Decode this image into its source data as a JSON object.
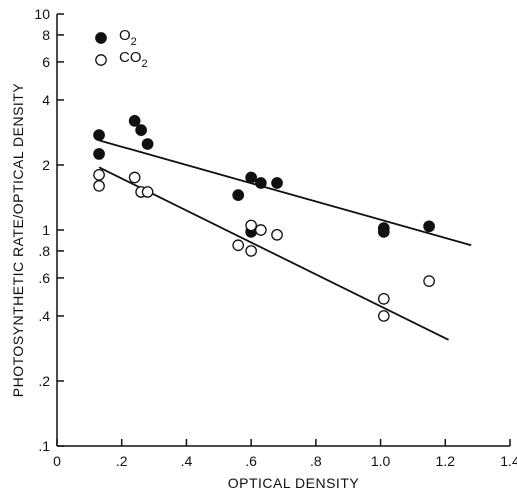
{
  "chart_data": {
    "type": "scatter",
    "title": "",
    "xlabel": "OPTICAL DENSITY",
    "ylabel": "PHOTOSYNTHETIC RATE/OPTICAL DENSITY",
    "xlim": [
      0,
      1.4
    ],
    "ylim": [
      0.1,
      10
    ],
    "yscale": "log",
    "grid": false,
    "legend_position": "top-left",
    "x_ticks": [
      {
        "value": 0,
        "label": "0"
      },
      {
        "value": 0.2,
        "label": ".2"
      },
      {
        "value": 0.4,
        "label": ".4"
      },
      {
        "value": 0.6,
        "label": ".6"
      },
      {
        "value": 0.8,
        "label": ".8"
      },
      {
        "value": 1.0,
        "label": "1.0"
      },
      {
        "value": 1.2,
        "label": "1.2"
      },
      {
        "value": 1.4,
        "label": "1.4"
      }
    ],
    "y_ticks": [
      {
        "value": 0.1,
        "label": ".1"
      },
      {
        "value": 0.2,
        "label": ".2"
      },
      {
        "value": 0.4,
        "label": ".4"
      },
      {
        "value": 0.6,
        "label": ".6"
      },
      {
        "value": 0.8,
        "label": ".8"
      },
      {
        "value": 1,
        "label": "1"
      },
      {
        "value": 2,
        "label": "2"
      },
      {
        "value": 4,
        "label": "4"
      },
      {
        "value": 6,
        "label": "6"
      },
      {
        "value": 8,
        "label": "8"
      },
      {
        "value": 10,
        "label": "10"
      }
    ],
    "series": [
      {
        "name": "O2",
        "marker": "filled-circle",
        "color": "#111111",
        "points": [
          [
            0.13,
            2.75
          ],
          [
            0.13,
            2.25
          ],
          [
            0.24,
            3.2
          ],
          [
            0.26,
            2.9
          ],
          [
            0.28,
            2.5
          ],
          [
            0.56,
            1.45
          ],
          [
            0.6,
            1.75
          ],
          [
            0.6,
            0.98
          ],
          [
            0.63,
            1.65
          ],
          [
            0.68,
            1.65
          ],
          [
            1.01,
            1.02
          ],
          [
            1.01,
            0.98
          ],
          [
            1.15,
            1.04
          ]
        ],
        "trendline": [
          [
            0.13,
            2.6
          ],
          [
            1.28,
            0.85
          ]
        ]
      },
      {
        "name": "CO2",
        "marker": "open-circle",
        "color": "#111111",
        "points": [
          [
            0.13,
            1.8
          ],
          [
            0.13,
            1.6
          ],
          [
            0.24,
            1.75
          ],
          [
            0.26,
            1.5
          ],
          [
            0.28,
            1.5
          ],
          [
            0.56,
            0.85
          ],
          [
            0.6,
            1.05
          ],
          [
            0.6,
            0.8
          ],
          [
            0.63,
            1.0
          ],
          [
            0.68,
            0.95
          ],
          [
            1.01,
            0.48
          ],
          [
            1.01,
            0.4
          ],
          [
            1.15,
            0.58
          ]
        ],
        "trendline": [
          [
            0.13,
            1.95
          ],
          [
            1.21,
            0.31
          ]
        ]
      }
    ],
    "legend": [
      {
        "label": "O",
        "subscript": "2",
        "marker": "filled-circle"
      },
      {
        "label": "CO",
        "subscript": "2",
        "marker": "open-circle"
      }
    ]
  }
}
